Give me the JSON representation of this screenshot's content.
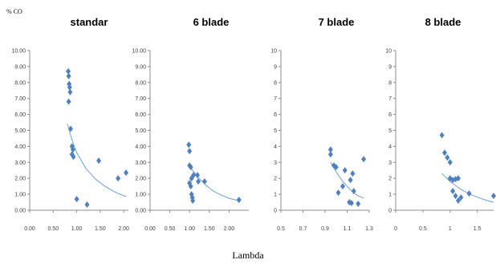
{
  "figure": {
    "ylabel": "% CO",
    "xlabel": "Lambda",
    "point_color": "#4f81bd",
    "trend_color": "#6fa0d8"
  },
  "chart_data": [
    {
      "type": "scatter",
      "title": "standar",
      "xlim": [
        0,
        2.1
      ],
      "ylim": [
        0,
        10
      ],
      "xticks": [
        "0.00",
        "0.50",
        "1.00",
        "1.50",
        "2.00"
      ],
      "yticks": [
        "0.00",
        "1.00",
        "2.00",
        "3.00",
        "4.00",
        "5.00",
        "6.00",
        "7.00",
        "8.00",
        "9.00",
        "10.00"
      ],
      "points": [
        {
          "x": 0.82,
          "y": 8.7
        },
        {
          "x": 0.83,
          "y": 8.4
        },
        {
          "x": 0.84,
          "y": 7.9
        },
        {
          "x": 0.85,
          "y": 7.7
        },
        {
          "x": 0.86,
          "y": 7.4
        },
        {
          "x": 0.83,
          "y": 6.8
        },
        {
          "x": 0.87,
          "y": 5.1
        },
        {
          "x": 0.9,
          "y": 4.0
        },
        {
          "x": 0.92,
          "y": 3.8
        },
        {
          "x": 0.9,
          "y": 3.5
        },
        {
          "x": 0.93,
          "y": 3.35
        },
        {
          "x": 1.0,
          "y": 0.7
        },
        {
          "x": 1.22,
          "y": 0.35
        },
        {
          "x": 1.47,
          "y": 3.1
        },
        {
          "x": 1.88,
          "y": 2.0
        },
        {
          "x": 2.05,
          "y": 2.35
        }
      ],
      "trend": [
        {
          "x": 0.8,
          "y": 5.4
        },
        {
          "x": 0.9,
          "y": 4.4
        },
        {
          "x": 1.0,
          "y": 3.6
        },
        {
          "x": 1.2,
          "y": 2.6
        },
        {
          "x": 1.4,
          "y": 1.95
        },
        {
          "x": 1.6,
          "y": 1.5
        },
        {
          "x": 1.8,
          "y": 1.15
        },
        {
          "x": 2.05,
          "y": 0.85
        }
      ]
    },
    {
      "type": "scatter",
      "title": "6 blade",
      "xlim": [
        0,
        2.5
      ],
      "ylim": [
        0,
        10
      ],
      "xticks": [
        "0.00",
        "0.50",
        "1.00",
        "1.50",
        "2.00"
      ],
      "yticks": [
        "0.00",
        "1.00",
        "2.00",
        "3.00",
        "4.00",
        "5.00",
        "6.00",
        "7.00",
        "8.00",
        "9.00",
        "10.00"
      ],
      "points": [
        {
          "x": 0.98,
          "y": 4.1
        },
        {
          "x": 1.0,
          "y": 3.7
        },
        {
          "x": 1.0,
          "y": 2.8
        },
        {
          "x": 1.03,
          "y": 2.7
        },
        {
          "x": 1.1,
          "y": 2.2
        },
        {
          "x": 1.2,
          "y": 2.2
        },
        {
          "x": 1.05,
          "y": 2.0
        },
        {
          "x": 1.22,
          "y": 1.8
        },
        {
          "x": 1.38,
          "y": 1.8
        },
        {
          "x": 1.0,
          "y": 1.7
        },
        {
          "x": 1.03,
          "y": 1.5
        },
        {
          "x": 1.05,
          "y": 1.0
        },
        {
          "x": 1.07,
          "y": 0.8
        },
        {
          "x": 1.08,
          "y": 0.6
        },
        {
          "x": 2.25,
          "y": 0.65
        }
      ],
      "trend": [
        {
          "x": 0.98,
          "y": 2.8
        },
        {
          "x": 1.2,
          "y": 2.1
        },
        {
          "x": 1.4,
          "y": 1.6
        },
        {
          "x": 1.6,
          "y": 1.2
        },
        {
          "x": 1.8,
          "y": 0.95
        },
        {
          "x": 2.0,
          "y": 0.75
        },
        {
          "x": 2.25,
          "y": 0.6
        }
      ]
    },
    {
      "type": "scatter",
      "title": "7 blade",
      "xlim": [
        0.5,
        1.3
      ],
      "ylim": [
        0,
        10
      ],
      "xticks": [
        "0.5",
        "0.7",
        "0.9",
        "1.1",
        "1.3"
      ],
      "yticks": [
        "0",
        "1",
        "2",
        "3",
        "4",
        "5",
        "6",
        "7",
        "8",
        "9",
        "10"
      ],
      "points": [
        {
          "x": 0.95,
          "y": 3.8
        },
        {
          "x": 0.95,
          "y": 3.5
        },
        {
          "x": 0.98,
          "y": 2.8
        },
        {
          "x": 1.0,
          "y": 2.7
        },
        {
          "x": 1.08,
          "y": 2.5
        },
        {
          "x": 1.15,
          "y": 2.3
        },
        {
          "x": 1.13,
          "y": 1.9
        },
        {
          "x": 1.06,
          "y": 1.5
        },
        {
          "x": 1.02,
          "y": 1.1
        },
        {
          "x": 1.16,
          "y": 1.2
        },
        {
          "x": 1.12,
          "y": 0.5
        },
        {
          "x": 1.14,
          "y": 0.45
        },
        {
          "x": 1.2,
          "y": 0.4
        },
        {
          "x": 1.25,
          "y": 3.2
        }
      ],
      "trend": [
        {
          "x": 0.95,
          "y": 3.0
        },
        {
          "x": 1.0,
          "y": 2.4
        },
        {
          "x": 1.05,
          "y": 1.9
        },
        {
          "x": 1.1,
          "y": 1.5
        },
        {
          "x": 1.15,
          "y": 1.15
        },
        {
          "x": 1.2,
          "y": 0.9
        },
        {
          "x": 1.25,
          "y": 0.75
        }
      ]
    },
    {
      "type": "scatter",
      "title": "8 blade",
      "xlim": [
        0,
        1.8
      ],
      "ylim": [
        0,
        10
      ],
      "xticks": [
        "0",
        "0.5",
        "1",
        "1.5"
      ],
      "yticks": [
        "0",
        "1",
        "2",
        "3",
        "4",
        "5",
        "6",
        "7",
        "8",
        "9",
        "10"
      ],
      "points": [
        {
          "x": 0.85,
          "y": 4.7
        },
        {
          "x": 0.9,
          "y": 3.6
        },
        {
          "x": 0.95,
          "y": 3.3
        },
        {
          "x": 1.0,
          "y": 3.0
        },
        {
          "x": 1.0,
          "y": 2.0
        },
        {
          "x": 1.05,
          "y": 1.9
        },
        {
          "x": 1.1,
          "y": 1.95
        },
        {
          "x": 1.15,
          "y": 2.0
        },
        {
          "x": 1.05,
          "y": 1.2
        },
        {
          "x": 1.1,
          "y": 0.9
        },
        {
          "x": 1.15,
          "y": 0.6
        },
        {
          "x": 1.2,
          "y": 0.8
        },
        {
          "x": 1.35,
          "y": 1.05
        },
        {
          "x": 1.8,
          "y": 0.9
        }
      ],
      "trend": [
        {
          "x": 0.85,
          "y": 2.3
        },
        {
          "x": 1.0,
          "y": 1.8
        },
        {
          "x": 1.2,
          "y": 1.3
        },
        {
          "x": 1.4,
          "y": 0.95
        },
        {
          "x": 1.6,
          "y": 0.7
        },
        {
          "x": 1.8,
          "y": 0.5
        }
      ]
    }
  ]
}
